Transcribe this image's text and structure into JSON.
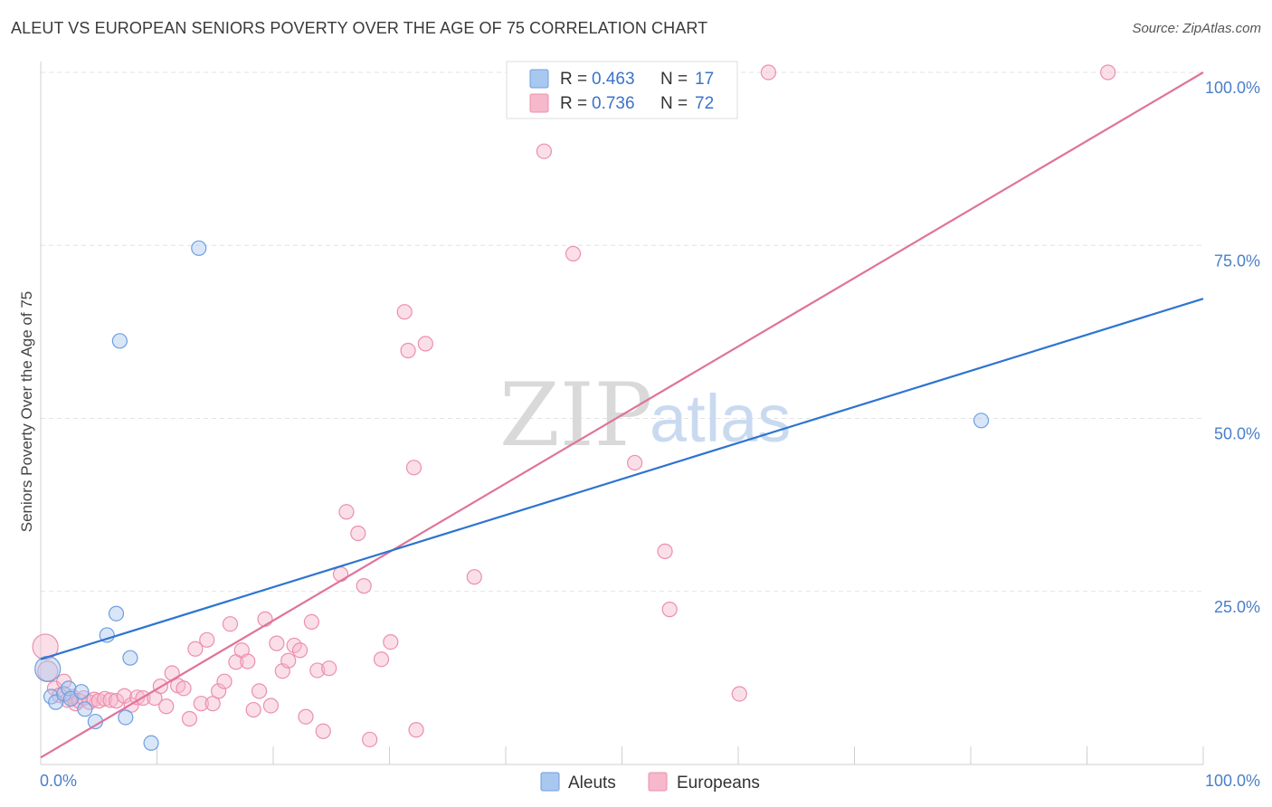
{
  "title": "ALEUT VS EUROPEAN SENIORS POVERTY OVER THE AGE OF 75 CORRELATION CHART",
  "source": "Source: ZipAtlas.com",
  "watermark": {
    "zip": "ZIP",
    "atlas": "atlas"
  },
  "colors": {
    "aleut_fill": "#a9c8f0",
    "aleut_stroke": "#6f9ee0",
    "aleut_line": "#2e74d0",
    "euro_fill": "#f6b8cb",
    "euro_stroke": "#eb8fad",
    "euro_line": "#e0739a",
    "tick_label": "#4a7fc8",
    "grid": "#e3e3e3"
  },
  "legend": {
    "aleut": {
      "r_label": "R = ",
      "r_value": "0.463",
      "n_label": "N = ",
      "n_value": "17"
    },
    "euro": {
      "r_label": "R = ",
      "r_value": "0.736",
      "n_label": "N = ",
      "n_value": "72"
    }
  },
  "bottom_legend": {
    "aleut": "Aleuts",
    "euro": "Europeans"
  },
  "chart_data": {
    "type": "scatter",
    "title": "ALEUT VS EUROPEAN SENIORS POVERTY OVER THE AGE OF 75 CORRELATION CHART",
    "xlabel": "",
    "ylabel": "Seniors Poverty Over the Age of 75",
    "xlim": [
      0,
      100
    ],
    "ylim": [
      0,
      100
    ],
    "x_tick_labels": [
      "0.0%",
      "100.0%"
    ],
    "y_ticks": [
      25,
      50,
      75,
      100
    ],
    "y_tick_labels": [
      "25.0%",
      "50.0%",
      "75.0%",
      "100.0%"
    ],
    "series": [
      {
        "name": "Aleuts",
        "points": [
          [
            0.6,
            13.8
          ],
          [
            0.9,
            9.8
          ],
          [
            1.3,
            9.0
          ],
          [
            2.0,
            10.2
          ],
          [
            2.4,
            11.0
          ],
          [
            2.6,
            9.5
          ],
          [
            3.5,
            10.5
          ],
          [
            3.8,
            8.0
          ],
          [
            4.7,
            6.2
          ],
          [
            5.7,
            18.7
          ],
          [
            6.5,
            21.8
          ],
          [
            7.3,
            6.8
          ],
          [
            7.7,
            15.4
          ],
          [
            9.5,
            3.1
          ],
          [
            6.8,
            61.2
          ],
          [
            13.6,
            74.6
          ],
          [
            80.9,
            49.7
          ]
        ],
        "trend": {
          "x": [
            0,
            100
          ],
          "y": [
            15.2,
            67.3
          ]
        }
      },
      {
        "name": "Europeans",
        "points": [
          [
            0.4,
            17.0
          ],
          [
            0.6,
            13.5
          ],
          [
            1.2,
            11.0
          ],
          [
            1.6,
            10.0
          ],
          [
            2.0,
            12.0
          ],
          [
            2.3,
            9.3
          ],
          [
            2.7,
            9.8
          ],
          [
            3.0,
            8.8
          ],
          [
            3.3,
            9.2
          ],
          [
            3.7,
            9.6
          ],
          [
            4.2,
            9.0
          ],
          [
            4.6,
            9.4
          ],
          [
            5.0,
            9.2
          ],
          [
            5.5,
            9.5
          ],
          [
            6.0,
            9.3
          ],
          [
            6.5,
            9.2
          ],
          [
            7.2,
            9.9
          ],
          [
            7.8,
            8.6
          ],
          [
            8.3,
            9.7
          ],
          [
            8.8,
            9.6
          ],
          [
            9.8,
            9.6
          ],
          [
            10.3,
            11.3
          ],
          [
            10.8,
            8.4
          ],
          [
            11.3,
            13.2
          ],
          [
            11.8,
            11.4
          ],
          [
            12.3,
            11.0
          ],
          [
            12.8,
            6.6
          ],
          [
            13.3,
            16.7
          ],
          [
            13.8,
            8.8
          ],
          [
            14.3,
            18.0
          ],
          [
            14.8,
            8.8
          ],
          [
            15.3,
            10.6
          ],
          [
            15.8,
            12.0
          ],
          [
            16.3,
            20.3
          ],
          [
            16.8,
            14.8
          ],
          [
            17.3,
            16.5
          ],
          [
            17.8,
            14.9
          ],
          [
            18.3,
            7.9
          ],
          [
            18.8,
            10.6
          ],
          [
            19.3,
            21.0
          ],
          [
            19.8,
            8.5
          ],
          [
            20.3,
            17.5
          ],
          [
            20.8,
            13.5
          ],
          [
            21.3,
            15.0
          ],
          [
            21.8,
            17.2
          ],
          [
            22.3,
            16.5
          ],
          [
            22.8,
            6.9
          ],
          [
            23.3,
            20.6
          ],
          [
            23.8,
            13.6
          ],
          [
            24.3,
            4.8
          ],
          [
            24.8,
            13.9
          ],
          [
            25.8,
            27.5
          ],
          [
            26.3,
            36.5
          ],
          [
            27.3,
            33.4
          ],
          [
            27.8,
            25.8
          ],
          [
            28.3,
            3.6
          ],
          [
            29.3,
            15.2
          ],
          [
            30.1,
            17.7
          ],
          [
            31.3,
            65.4
          ],
          [
            31.6,
            59.8
          ],
          [
            32.1,
            42.9
          ],
          [
            32.3,
            5.0
          ],
          [
            33.1,
            60.8
          ],
          [
            37.3,
            27.1
          ],
          [
            43.3,
            88.6
          ],
          [
            45.8,
            73.8
          ],
          [
            51.1,
            43.6
          ],
          [
            53.7,
            30.8
          ],
          [
            54.1,
            22.4
          ],
          [
            60.1,
            10.2
          ],
          [
            62.6,
            100.0
          ],
          [
            91.8,
            100.0
          ]
        ],
        "trend": {
          "x": [
            0,
            100
          ],
          "y": [
            1.0,
            100.0
          ]
        }
      }
    ]
  }
}
